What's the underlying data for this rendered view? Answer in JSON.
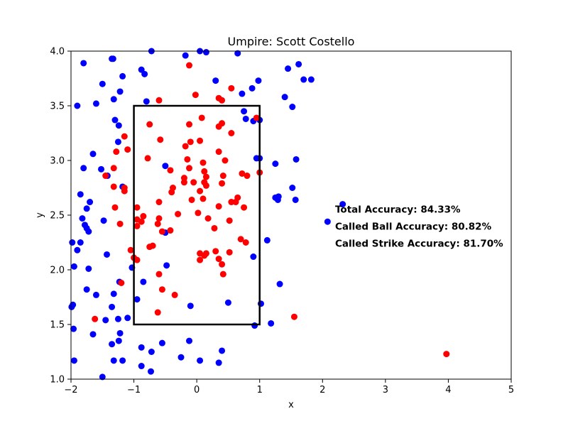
{
  "chart_data": {
    "type": "scatter",
    "title": "Umpire: Scott Costello",
    "xlabel": "x",
    "ylabel": "y",
    "xlim": [
      -2,
      5
    ],
    "ylim": [
      1.0,
      4.0
    ],
    "xticks": [
      -2,
      -1,
      0,
      1,
      2,
      3,
      4,
      5
    ],
    "yticks": [
      1.0,
      1.5,
      2.0,
      2.5,
      3.0,
      3.5,
      4.0
    ],
    "grid": false,
    "strike_zone": {
      "x0": -1.0,
      "x1": 1.0,
      "y0": 1.5,
      "y1": 3.5
    },
    "annotations": [
      "Total Accuracy: 84.33%",
      "Called Ball Accuracy: 80.82%",
      "Called Strike Accuracy: 81.70%"
    ],
    "annotation_anchor": {
      "x": 2.2,
      "y": 2.55
    },
    "colors": {
      "ball": "#0000ff",
      "strike": "#ff0000",
      "zone": "#000000"
    },
    "series": [
      {
        "color": "#0000ff",
        "points": [
          [
            -1.9,
            3.5
          ],
          [
            -1.8,
            3.89
          ],
          [
            -1.6,
            3.52
          ],
          [
            -1.65,
            3.06
          ],
          [
            -1.8,
            2.93
          ],
          [
            -1.7,
            2.62
          ],
          [
            -1.75,
            2.56
          ],
          [
            -1.85,
            2.69
          ],
          [
            -1.82,
            2.47
          ],
          [
            -1.78,
            2.41
          ],
          [
            -1.75,
            2.38
          ],
          [
            -1.72,
            2.35
          ],
          [
            -1.85,
            2.25
          ],
          [
            -1.98,
            2.25
          ],
          [
            -1.9,
            2.18
          ],
          [
            -1.72,
            2.01
          ],
          [
            -1.95,
            2.03
          ],
          [
            -1.75,
            1.82
          ],
          [
            -1.6,
            1.77
          ],
          [
            -1.97,
            1.68
          ],
          [
            -1.99,
            1.66
          ],
          [
            -1.96,
            1.46
          ],
          [
            -1.65,
            1.41
          ],
          [
            -1.95,
            1.17
          ],
          [
            -1.5,
            3.7
          ],
          [
            -1.35,
            3.93
          ],
          [
            -1.33,
            3.93
          ],
          [
            -1.22,
            3.63
          ],
          [
            -1.18,
            3.77
          ],
          [
            -1.32,
            3.56
          ],
          [
            -1.3,
            3.37
          ],
          [
            -1.24,
            3.32
          ],
          [
            -1.25,
            3.17
          ],
          [
            -1.52,
            2.92
          ],
          [
            -1.42,
            2.86
          ],
          [
            -1.18,
            2.76
          ],
          [
            -1.48,
            2.45
          ],
          [
            -1.43,
            2.14
          ],
          [
            -1.23,
            1.89
          ],
          [
            -1.1,
            1.56
          ],
          [
            -1.32,
            1.78
          ],
          [
            -1.35,
            1.66
          ],
          [
            -1.45,
            1.54
          ],
          [
            -1.25,
            1.55
          ],
          [
            -1.22,
            1.42
          ],
          [
            -1.24,
            1.35
          ],
          [
            -1.35,
            1.32
          ],
          [
            -1.32,
            1.17
          ],
          [
            -1.18,
            1.17
          ],
          [
            -1.5,
            1.02
          ],
          [
            -0.72,
            4.0
          ],
          [
            -0.88,
            3.83
          ],
          [
            -0.83,
            3.79
          ],
          [
            -0.8,
            3.54
          ],
          [
            -0.5,
            2.95
          ],
          [
            -0.5,
            2.34
          ],
          [
            -0.95,
            1.73
          ],
          [
            -1.03,
            2.02
          ],
          [
            -0.85,
            1.89
          ],
          [
            -0.48,
            2.04
          ],
          [
            -0.88,
            1.29
          ],
          [
            -0.72,
            1.25
          ],
          [
            -0.55,
            1.33
          ],
          [
            -0.88,
            1.12
          ],
          [
            -0.73,
            1.07
          ],
          [
            -0.25,
            1.2
          ],
          [
            -0.18,
            3.96
          ],
          [
            0.05,
            4.0
          ],
          [
            0.15,
            3.99
          ],
          [
            0.65,
            3.98
          ],
          [
            0.3,
            3.73
          ],
          [
            0.72,
            3.61
          ],
          [
            0.88,
            3.66
          ],
          [
            0.98,
            3.73
          ],
          [
            0.75,
            3.45
          ],
          [
            0.78,
            3.38
          ],
          [
            0.9,
            3.36
          ],
          [
            1.0,
            3.37
          ],
          [
            0.95,
            3.02
          ],
          [
            1.0,
            3.02
          ],
          [
            0.9,
            2.12
          ],
          [
            1.02,
            1.69
          ],
          [
            0.92,
            1.49
          ],
          [
            0.5,
            1.7
          ],
          [
            0.35,
            1.15
          ],
          [
            0.4,
            1.26
          ],
          [
            0.05,
            1.17
          ],
          [
            -0.12,
            1.35
          ],
          [
            -0.1,
            1.67
          ],
          [
            1.45,
            3.84
          ],
          [
            1.62,
            3.88
          ],
          [
            1.7,
            3.74
          ],
          [
            1.82,
            3.74
          ],
          [
            1.4,
            3.58
          ],
          [
            1.52,
            3.49
          ],
          [
            1.25,
            2.97
          ],
          [
            1.58,
            3.01
          ],
          [
            1.25,
            2.66
          ],
          [
            1.3,
            2.67
          ],
          [
            1.29,
            2.64
          ],
          [
            1.52,
            2.75
          ],
          [
            1.57,
            2.64
          ],
          [
            1.12,
            2.27
          ],
          [
            1.32,
            1.87
          ],
          [
            1.18,
            1.51
          ],
          [
            2.32,
            2.6
          ],
          [
            2.08,
            2.44
          ]
        ]
      },
      {
        "color": "#ff0000",
        "points": [
          [
            -1.15,
            3.22
          ],
          [
            -1.1,
            3.1
          ],
          [
            -1.28,
            3.08
          ],
          [
            -1.32,
            2.93
          ],
          [
            -1.45,
            2.86
          ],
          [
            -1.32,
            2.76
          ],
          [
            -1.15,
            2.75
          ],
          [
            -1.15,
            2.72
          ],
          [
            -1.3,
            2.57
          ],
          [
            -1.22,
            2.42
          ],
          [
            -1.2,
            1.88
          ],
          [
            -1.62,
            1.55
          ],
          [
            -1.05,
            2.18
          ],
          [
            -1.0,
            2.11
          ],
          [
            -0.95,
            2.09
          ],
          [
            -0.95,
            2.57
          ],
          [
            -0.95,
            2.46
          ],
          [
            -0.95,
            2.4
          ],
          [
            -0.85,
            2.49
          ],
          [
            -0.88,
            2.44
          ],
          [
            -0.75,
            3.33
          ],
          [
            -0.78,
            3.02
          ],
          [
            -0.6,
            3.55
          ],
          [
            -0.58,
            3.19
          ],
          [
            -0.6,
            2.62
          ],
          [
            -0.6,
            2.47
          ],
          [
            -0.62,
            2.42
          ],
          [
            -0.55,
            2.35
          ],
          [
            -0.75,
            2.21
          ],
          [
            -0.7,
            2.22
          ],
          [
            -0.6,
            1.96
          ],
          [
            -0.55,
            1.82
          ],
          [
            -0.35,
            1.77
          ],
          [
            -0.62,
            1.61
          ],
          [
            -0.42,
            2.91
          ],
          [
            -0.38,
            2.75
          ],
          [
            -0.4,
            2.71
          ],
          [
            -0.42,
            2.36
          ],
          [
            -0.3,
            2.51
          ],
          [
            -0.2,
            2.84
          ],
          [
            -0.2,
            2.8
          ],
          [
            -0.18,
            3.13
          ],
          [
            -0.15,
            3.01
          ],
          [
            -0.12,
            3.33
          ],
          [
            -0.1,
            3.17
          ],
          [
            -0.12,
            2.93
          ],
          [
            -0.05,
            2.8
          ],
          [
            -0.08,
            2.64
          ],
          [
            -0.12,
            3.87
          ],
          [
            -0.02,
            3.6
          ],
          [
            0.05,
            3.18
          ],
          [
            0.08,
            3.39
          ],
          [
            0.1,
            2.98
          ],
          [
            0.12,
            2.9
          ],
          [
            0.15,
            2.85
          ],
          [
            0.12,
            2.8
          ],
          [
            0.15,
            2.77
          ],
          [
            0.05,
            2.72
          ],
          [
            0.1,
            2.65
          ],
          [
            0.02,
            2.52
          ],
          [
            0.18,
            2.47
          ],
          [
            0.28,
            2.38
          ],
          [
            0.05,
            2.15
          ],
          [
            0.12,
            2.13
          ],
          [
            0.15,
            2.15
          ],
          [
            0.05,
            2.09
          ],
          [
            0.3,
            2.17
          ],
          [
            0.35,
            2.1
          ],
          [
            0.4,
            2.05
          ],
          [
            0.42,
            1.96
          ],
          [
            0.35,
            3.57
          ],
          [
            0.4,
            3.55
          ],
          [
            0.35,
            3.31
          ],
          [
            0.4,
            3.34
          ],
          [
            0.35,
            3.08
          ],
          [
            0.45,
            3.0
          ],
          [
            0.42,
            2.86
          ],
          [
            0.4,
            2.79
          ],
          [
            0.35,
            2.58
          ],
          [
            0.55,
            3.66
          ],
          [
            0.55,
            3.25
          ],
          [
            0.55,
            2.62
          ],
          [
            0.52,
            2.45
          ],
          [
            0.52,
            2.16
          ],
          [
            0.65,
            2.66
          ],
          [
            0.62,
            2.62
          ],
          [
            0.72,
            2.88
          ],
          [
            0.8,
            2.86
          ],
          [
            0.75,
            2.57
          ],
          [
            0.7,
            2.28
          ],
          [
            0.78,
            2.25
          ],
          [
            0.95,
            3.39
          ],
          [
            1.0,
            2.89
          ],
          [
            1.55,
            1.57
          ],
          [
            3.97,
            1.23
          ]
        ]
      }
    ]
  }
}
